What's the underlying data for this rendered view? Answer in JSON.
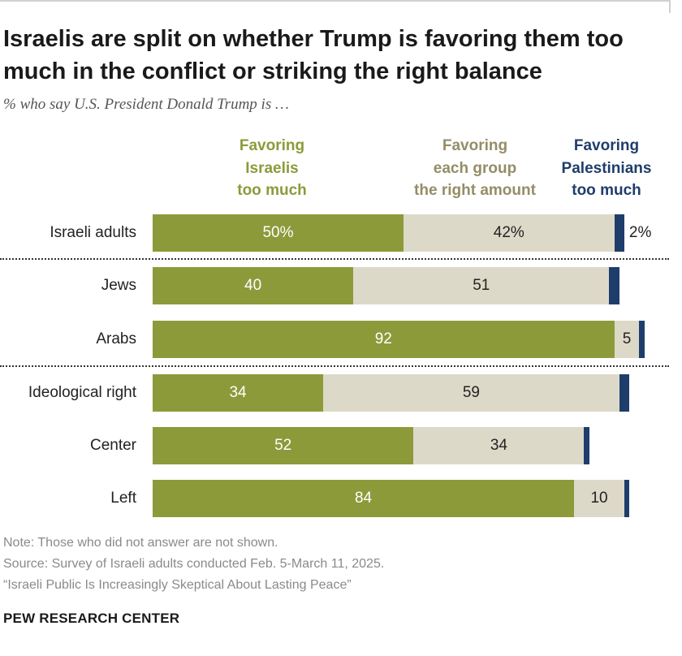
{
  "title": "Israelis are split on whether Trump is favoring them too much in the conflict or striking the right balance",
  "subtitle": "% who say U.S. President Donald Trump is …",
  "chart_data": {
    "type": "bar",
    "orientation": "horizontal",
    "stacked": true,
    "categories": [
      "Israeli adults",
      "Jews",
      "Arabs",
      "Ideological right",
      "Center",
      "Left"
    ],
    "series": [
      {
        "name": "Favoring Israelis too much",
        "color": "#8d9a3a",
        "values": [
          50,
          40,
          92,
          34,
          52,
          84
        ]
      },
      {
        "name": "Favoring each group the right amount",
        "color": "#ddd9c9",
        "values": [
          42,
          51,
          5,
          59,
          34,
          10
        ]
      },
      {
        "name": "Favoring Palestinians too much",
        "color": "#1f3d6b",
        "values": [
          2,
          2,
          1,
          2,
          1,
          1
        ]
      }
    ],
    "value_labels": [
      [
        "50%",
        "42%",
        "2%"
      ],
      [
        "40",
        "51",
        ""
      ],
      [
        "92",
        "5",
        ""
      ],
      [
        "34",
        "59",
        ""
      ],
      [
        "52",
        "34",
        ""
      ],
      [
        "84",
        "10",
        ""
      ]
    ],
    "legend_lines": [
      [
        "Favoring",
        "Israelis",
        "too much"
      ],
      [
        "Favoring",
        "each group",
        "the right amount"
      ],
      [
        "Favoring",
        "Palestinians",
        "too much"
      ]
    ],
    "legend_position": "top",
    "xlim": [
      0,
      100
    ]
  },
  "notes": {
    "note": "Note: Those who did not answer are not shown.",
    "source": "Source: Survey of Israeli adults conducted Feb. 5-March 11, 2025.",
    "report": "“Israeli Public Is Increasingly Skeptical About Lasting Peace”"
  },
  "brand": "PEW RESEARCH CENTER"
}
